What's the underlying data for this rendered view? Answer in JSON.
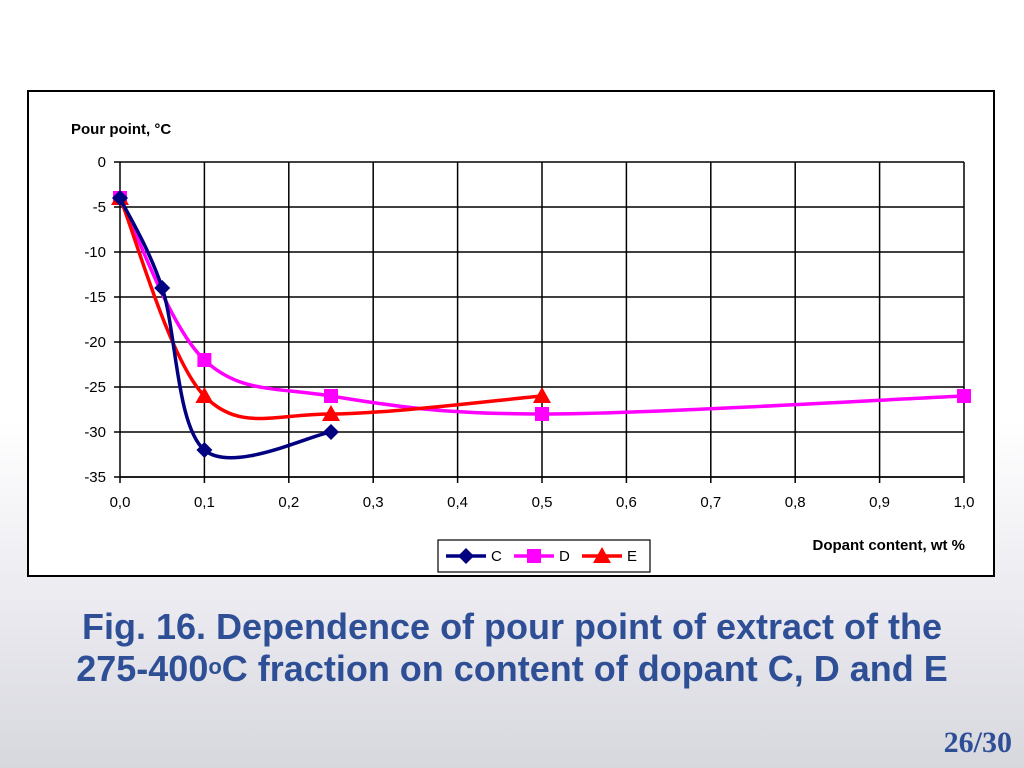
{
  "caption": {
    "line1": "Fig. 16. Dependence of pour point of extract of the",
    "line2_prefix": "275-400",
    "line2_sup": "o",
    "line2_suffix": "C fraction on content of dopant C, D and E"
  },
  "slide_number": "26/30",
  "colors": {
    "C": "#000080",
    "D": "#ff00ff",
    "E": "#ff0000",
    "caption": "#2e4f95"
  },
  "chart_data": {
    "type": "line",
    "ylabel": "Pour point, °C",
    "xlabel": "Dopant content, wt %",
    "xlim": [
      0,
      1.0
    ],
    "ylim": [
      -35,
      0
    ],
    "x_ticks": [
      "0,0",
      "0,1",
      "0,2",
      "0,3",
      "0,4",
      "0,5",
      "0,6",
      "0,7",
      "0,8",
      "0,9",
      "1,0"
    ],
    "y_ticks": [
      "0",
      "-5",
      "-10",
      "-15",
      "-20",
      "-25",
      "-30",
      "-35"
    ],
    "grid": true,
    "legend_position": "bottom-center",
    "series": [
      {
        "name": "C",
        "marker": "diamond",
        "x": [
          0,
          0.05,
          0.1,
          0.25
        ],
        "y": [
          -4,
          -14,
          -32,
          -30
        ]
      },
      {
        "name": "D",
        "marker": "square",
        "x": [
          0,
          0.1,
          0.25,
          0.5,
          1.0
        ],
        "y": [
          -4,
          -22,
          -26,
          -28,
          -26
        ]
      },
      {
        "name": "E",
        "marker": "triangle",
        "x": [
          0,
          0.1,
          0.25,
          0.5
        ],
        "y": [
          -4,
          -26,
          -28,
          -26
        ]
      }
    ]
  }
}
